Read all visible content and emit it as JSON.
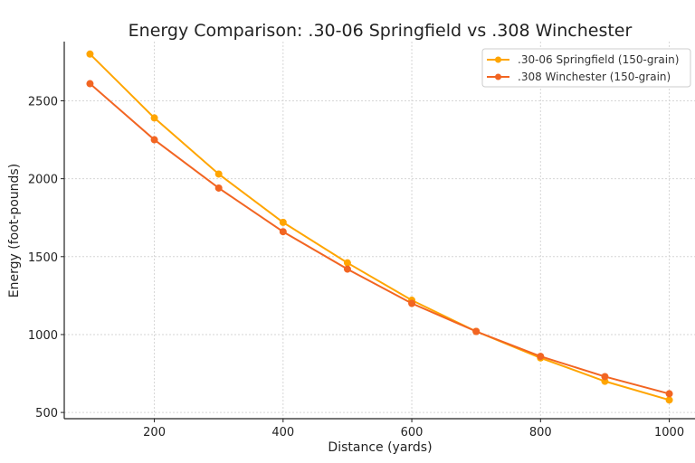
{
  "chart_data": {
    "type": "line",
    "title": "Energy Comparison: .30-06 Springfield vs .308 Winchester",
    "xlabel": "Distance (yards)",
    "ylabel": "Energy (foot-pounds)",
    "x": [
      100,
      200,
      300,
      400,
      500,
      600,
      700,
      800,
      900,
      1000
    ],
    "xticks": [
      200,
      400,
      600,
      800,
      1000
    ],
    "yticks": [
      500,
      1000,
      1500,
      2000,
      2500
    ],
    "xlim": [
      60,
      1040
    ],
    "ylim": [
      460,
      2880
    ],
    "grid": true,
    "legend_position": "top-right",
    "series": [
      {
        "name": ".30-06 Springfield (150-grain)",
        "color": "#FFA500",
        "marker": "circle",
        "values": [
          2800,
          2390,
          2030,
          1720,
          1460,
          1220,
          1020,
          850,
          700,
          580
        ]
      },
      {
        "name": ".308 Winchester (150-grain)",
        "color": "#F26522",
        "marker": "circle",
        "values": [
          2610,
          2250,
          1940,
          1660,
          1420,
          1200,
          1020,
          860,
          730,
          620
        ]
      }
    ]
  }
}
